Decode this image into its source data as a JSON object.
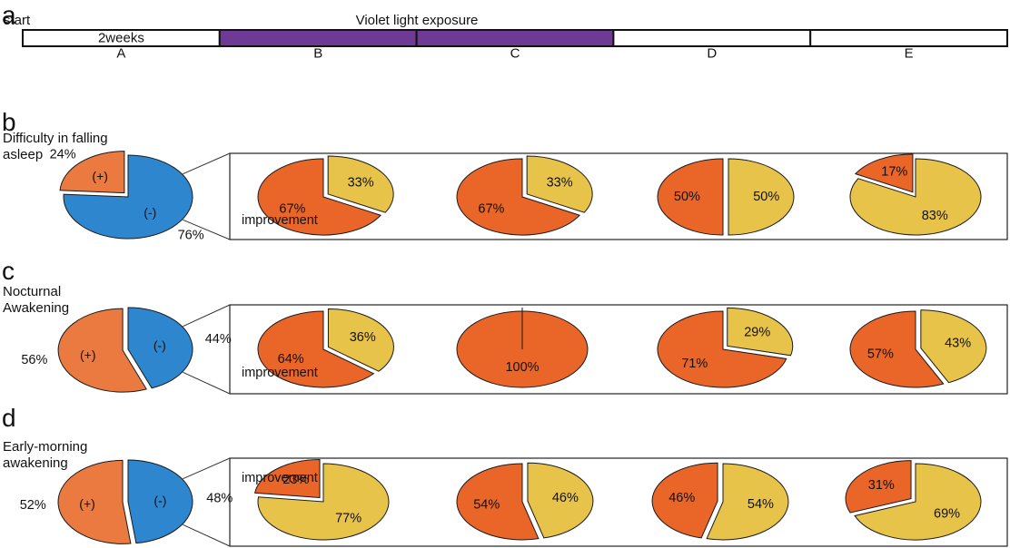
{
  "timeline": {
    "panel": "a",
    "start_label": "start",
    "title": "Violet light exposure",
    "duration_label": "2weeks",
    "segments": [
      {
        "label": "A",
        "exposed": false
      },
      {
        "label": "B",
        "exposed": true
      },
      {
        "label": "C",
        "exposed": true
      },
      {
        "label": "D",
        "exposed": false
      },
      {
        "label": "E",
        "exposed": false
      }
    ]
  },
  "colors": {
    "exposure": "#6f3a96",
    "positive": "#ea7a40",
    "negative": "#2e86cf",
    "improved": "#ea6528",
    "not_improved": "#e7c34a"
  },
  "chart_data": [
    {
      "type": "pie",
      "panel": "b",
      "title": "Difficulty in falling asleep",
      "overall": {
        "slices": [
          {
            "label": "(+)",
            "pct_label": "24%",
            "value": 24,
            "role": "positive"
          },
          {
            "label": "(-)",
            "pct_label": "76%",
            "value": 76,
            "role": "negative"
          }
        ]
      },
      "improvement_label": "improvement",
      "improvement_label_segment": "B",
      "segments": [
        {
          "segment": "B",
          "improved": 67,
          "improved_label": "67%",
          "not_improved": 33,
          "not_improved_label": "33%"
        },
        {
          "segment": "C",
          "improved": 67,
          "improved_label": "67%",
          "not_improved": 33,
          "not_improved_label": "33%"
        },
        {
          "segment": "D",
          "improved": 50,
          "improved_label": "50%",
          "not_improved": 50,
          "not_improved_label": "50%"
        },
        {
          "segment": "E",
          "improved": 17,
          "improved_label": "17%",
          "not_improved": 83,
          "not_improved_label": "83%"
        }
      ]
    },
    {
      "type": "pie",
      "panel": "c",
      "title": "Nocturnal Awakening",
      "overall": {
        "slices": [
          {
            "label": "(+)",
            "pct_label": "56%",
            "value": 56,
            "role": "positive"
          },
          {
            "label": "(-)",
            "pct_label": "44%",
            "value": 44,
            "role": "negative"
          }
        ]
      },
      "improvement_label": "improvement",
      "improvement_label_segment": "B",
      "segments": [
        {
          "segment": "B",
          "improved": 64,
          "improved_label": "64%",
          "not_improved": 36,
          "not_improved_label": "36%"
        },
        {
          "segment": "C",
          "improved": 100,
          "improved_label": "100%",
          "not_improved": 0,
          "not_improved_label": ""
        },
        {
          "segment": "D",
          "improved": 71,
          "improved_label": "71%",
          "not_improved": 29,
          "not_improved_label": "29%"
        },
        {
          "segment": "E",
          "improved": 57,
          "improved_label": "57%",
          "not_improved": 43,
          "not_improved_label": "43%"
        }
      ]
    },
    {
      "type": "pie",
      "panel": "d",
      "title": "Early-morning awakening",
      "overall": {
        "slices": [
          {
            "label": "(+)",
            "pct_label": "52%",
            "value": 52,
            "role": "positive"
          },
          {
            "label": "(-)",
            "pct_label": "48%",
            "value": 48,
            "role": "negative"
          }
        ]
      },
      "improvement_label": "improvement",
      "improvement_label_segment": "B",
      "segments": [
        {
          "segment": "B",
          "improved": 23,
          "improved_label": "23%",
          "not_improved": 77,
          "not_improved_label": "77%"
        },
        {
          "segment": "C",
          "improved": 54,
          "improved_label": "54%",
          "not_improved": 46,
          "not_improved_label": "46%"
        },
        {
          "segment": "D",
          "improved": 46,
          "improved_label": "46%",
          "not_improved": 54,
          "not_improved_label": "54%"
        },
        {
          "segment": "E",
          "improved": 31,
          "improved_label": "31%",
          "not_improved": 69,
          "not_improved_label": "69%"
        }
      ]
    }
  ]
}
